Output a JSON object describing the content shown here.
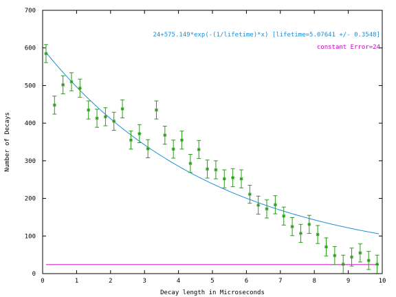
{
  "chart_data": {
    "type": "scatter",
    "xlabel": "Decay length in Microseconds",
    "ylabel": "Number of Decays",
    "xlim": [
      0,
      10
    ],
    "ylim": [
      0,
      700
    ],
    "x_ticks": [
      "0",
      "1",
      "2",
      "3",
      "4",
      "5",
      "6",
      "7",
      "8",
      "9",
      "10"
    ],
    "y_ticks": [
      "0",
      "100",
      "200",
      "300",
      "400",
      "500",
      "600",
      "700"
    ],
    "grid": false,
    "legend_placement": "top-right",
    "colors": {
      "points": "#2a9a18",
      "fit": "#1a8fd8",
      "constant": "#c800c8",
      "frame": "#000000"
    },
    "series": [
      {
        "name": "",
        "kind": "points_with_error_bars",
        "x": [
          0.1,
          0.35,
          0.6,
          0.85,
          1.1,
          1.35,
          1.6,
          1.85,
          2.1,
          2.35,
          2.6,
          2.85,
          3.1,
          3.35,
          3.6,
          3.85,
          4.1,
          4.35,
          4.6,
          4.85,
          5.1,
          5.35,
          5.6,
          5.85,
          6.1,
          6.35,
          6.6,
          6.85,
          7.1,
          7.35,
          7.6,
          7.85,
          8.1,
          8.35,
          8.6,
          8.85,
          9.1,
          9.35,
          9.6,
          9.85
        ],
        "y": [
          585,
          448,
          502,
          510,
          493,
          435,
          413,
          417,
          405,
          438,
          355,
          372,
          332,
          435,
          368,
          331,
          355,
          293,
          330,
          278,
          276,
          252,
          255,
          252,
          211,
          182,
          172,
          183,
          153,
          125,
          107,
          131,
          104,
          71,
          48,
          25,
          44,
          55,
          35,
          25
        ],
        "error": [
          24,
          24,
          24,
          24,
          24,
          24,
          24,
          24,
          24,
          24,
          24,
          24,
          24,
          24,
          24,
          24,
          24,
          24,
          24,
          24,
          24,
          24,
          24,
          24,
          24,
          24,
          24,
          24,
          24,
          24,
          24,
          24,
          24,
          24,
          24,
          24,
          24,
          24,
          24,
          24
        ]
      },
      {
        "name": "24+575.149*exp(-(1/lifetime)*x) [lifetime=5.07641 +/- 0.3548]",
        "kind": "fit_curve",
        "offset": 24,
        "amplitude": 575.149,
        "lifetime": 5.07641
      },
      {
        "name": "constant Error=24",
        "kind": "constant_line",
        "value": 24
      }
    ]
  }
}
